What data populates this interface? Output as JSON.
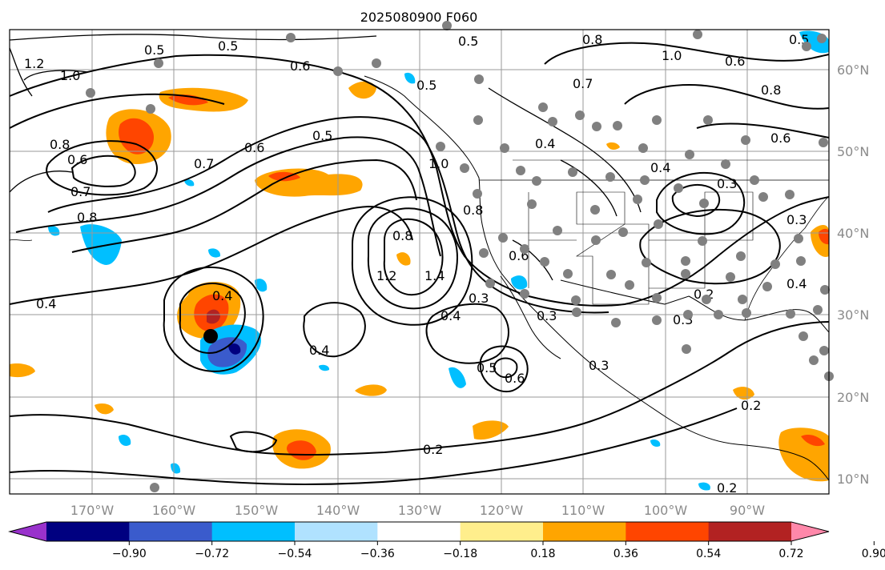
{
  "title": "2025080900 F060",
  "lat_labels": [
    "60°N",
    "50°N",
    "40°N",
    "30°N",
    "20°N",
    "10°N"
  ],
  "lon_labels": [
    "170°W",
    "160°W",
    "150°W",
    "140°W",
    "130°W",
    "120°W",
    "110°W",
    "100°W",
    "90°W"
  ],
  "colorbar": {
    "tick_labels": [
      "−0.90",
      "−0.72",
      "−0.54",
      "−0.36",
      "−0.18",
      "0.18",
      "0.36",
      "0.54",
      "0.72",
      "0.90"
    ],
    "colors": [
      "#9932cc",
      "#000080",
      "#3a5bcc",
      "#00bfff",
      "#b0e2ff",
      "#ffffff",
      "#ffee8c",
      "#ffa500",
      "#ff4500",
      "#b22222",
      "#ff88aa"
    ]
  },
  "contour_labels": [
    "0.5",
    "0.5",
    "0.6",
    "1.2",
    "1.0",
    "0.8",
    "0.8",
    "0.7",
    "0.6",
    "0.5",
    "0.7",
    "0.8",
    "0.6",
    "1.0",
    "0.8",
    "0.6",
    "0.7",
    "0.5",
    "0.4",
    "0.5",
    "0.6",
    "0.4",
    "0.3",
    "0.3",
    "0.2",
    "1.4",
    "1.2",
    "0.8",
    "0.4",
    "0.3",
    "0.3",
    "0.4",
    "0.4",
    "0.6",
    "0.5",
    "0.2",
    "0.3",
    "0.2",
    "0.3",
    "0.4",
    "1.0",
    "0.6",
    "0.4",
    "0.8",
    "0.5",
    "0.2"
  ],
  "colors": {
    "frame": "#000000",
    "grid": "#9a9a9a",
    "station_dot": "#808080",
    "tc_marker": "#000000"
  }
}
